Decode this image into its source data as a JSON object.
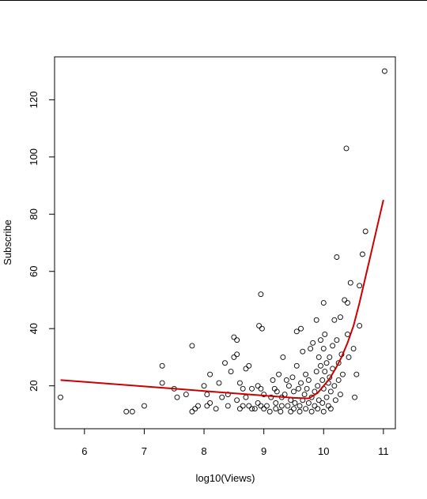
{
  "chart_data": {
    "type": "scatter",
    "xlabel": "log10(Views)",
    "ylabel": "Subscribe",
    "xlim": [
      5.5,
      11.2
    ],
    "ylim": [
      5,
      135
    ],
    "xticks": [
      6,
      7,
      8,
      9,
      10,
      11
    ],
    "yticks": [
      20,
      40,
      60,
      80,
      100,
      120
    ],
    "grid": false,
    "legend": "none",
    "point_color": "#000000",
    "fit_color": "#cc0000",
    "points": [
      [
        5.6,
        16
      ],
      [
        6.7,
        11
      ],
      [
        6.8,
        11
      ],
      [
        7.0,
        13
      ],
      [
        7.3,
        27
      ],
      [
        7.3,
        21
      ],
      [
        7.5,
        19
      ],
      [
        7.55,
        16
      ],
      [
        7.7,
        17
      ],
      [
        7.8,
        34
      ],
      [
        7.8,
        11
      ],
      [
        7.9,
        13
      ],
      [
        7.85,
        12
      ],
      [
        8.0,
        20
      ],
      [
        8.05,
        17
      ],
      [
        8.05,
        13
      ],
      [
        8.1,
        24
      ],
      [
        8.1,
        14
      ],
      [
        8.2,
        12
      ],
      [
        8.25,
        21
      ],
      [
        8.3,
        16
      ],
      [
        8.35,
        28
      ],
      [
        8.4,
        17
      ],
      [
        8.4,
        13
      ],
      [
        8.45,
        25
      ],
      [
        8.5,
        37
      ],
      [
        8.55,
        36
      ],
      [
        8.5,
        30
      ],
      [
        8.55,
        31
      ],
      [
        8.55,
        15
      ],
      [
        8.6,
        21
      ],
      [
        8.6,
        12
      ],
      [
        8.65,
        19
      ],
      [
        8.65,
        13
      ],
      [
        8.7,
        26
      ],
      [
        8.7,
        16
      ],
      [
        8.75,
        27
      ],
      [
        8.75,
        13
      ],
      [
        8.8,
        19
      ],
      [
        8.8,
        12
      ],
      [
        8.85,
        12
      ],
      [
        8.9,
        20
      ],
      [
        8.9,
        14
      ],
      [
        8.92,
        41
      ],
      [
        8.95,
        52
      ],
      [
        8.97,
        40
      ],
      [
        8.95,
        19
      ],
      [
        8.95,
        13
      ],
      [
        9.0,
        17
      ],
      [
        9.0,
        12
      ],
      [
        9.05,
        13
      ],
      [
        9.1,
        11
      ],
      [
        9.12,
        16
      ],
      [
        9.15,
        22
      ],
      [
        9.18,
        19
      ],
      [
        9.2,
        12
      ],
      [
        9.2,
        14
      ],
      [
        9.22,
        18
      ],
      [
        9.25,
        24
      ],
      [
        9.28,
        11
      ],
      [
        9.3,
        16
      ],
      [
        9.3,
        13
      ],
      [
        9.32,
        30
      ],
      [
        9.35,
        17
      ],
      [
        9.38,
        22
      ],
      [
        9.4,
        13
      ],
      [
        9.42,
        20
      ],
      [
        9.45,
        11
      ],
      [
        9.45,
        15
      ],
      [
        9.48,
        23
      ],
      [
        9.5,
        18
      ],
      [
        9.5,
        12
      ],
      [
        9.52,
        14
      ],
      [
        9.55,
        39
      ],
      [
        9.55,
        27
      ],
      [
        9.58,
        19
      ],
      [
        9.6,
        11
      ],
      [
        9.6,
        13
      ],
      [
        9.62,
        21
      ],
      [
        9.62,
        40
      ],
      [
        9.65,
        32
      ],
      [
        9.65,
        15
      ],
      [
        9.68,
        17
      ],
      [
        9.7,
        24
      ],
      [
        9.7,
        12
      ],
      [
        9.72,
        19
      ],
      [
        9.75,
        14
      ],
      [
        9.75,
        22
      ],
      [
        9.78,
        33
      ],
      [
        9.8,
        11
      ],
      [
        9.8,
        16
      ],
      [
        9.82,
        35
      ],
      [
        9.85,
        18
      ],
      [
        9.85,
        13
      ],
      [
        9.88,
        43
      ],
      [
        9.88,
        25
      ],
      [
        9.9,
        20
      ],
      [
        9.9,
        12
      ],
      [
        9.92,
        30
      ],
      [
        9.92,
        15
      ],
      [
        9.95,
        27
      ],
      [
        9.95,
        36
      ],
      [
        9.98,
        22
      ],
      [
        9.98,
        14
      ],
      [
        10.0,
        49
      ],
      [
        10.0,
        33
      ],
      [
        10.0,
        19
      ],
      [
        10.0,
        11
      ],
      [
        10.02,
        38
      ],
      [
        10.02,
        25
      ],
      [
        10.05,
        28
      ],
      [
        10.05,
        16
      ],
      [
        10.08,
        21
      ],
      [
        10.08,
        13
      ],
      [
        10.1,
        30
      ],
      [
        10.1,
        23
      ],
      [
        10.12,
        18
      ],
      [
        10.12,
        12
      ],
      [
        10.15,
        34
      ],
      [
        10.15,
        26
      ],
      [
        10.18,
        43
      ],
      [
        10.18,
        20
      ],
      [
        10.2,
        15
      ],
      [
        10.22,
        65
      ],
      [
        10.22,
        36
      ],
      [
        10.25,
        28
      ],
      [
        10.25,
        22
      ],
      [
        10.28,
        44
      ],
      [
        10.28,
        17
      ],
      [
        10.3,
        31
      ],
      [
        10.32,
        24
      ],
      [
        10.35,
        50
      ],
      [
        10.38,
        103
      ],
      [
        10.4,
        49
      ],
      [
        10.4,
        38
      ],
      [
        10.42,
        30
      ],
      [
        10.45,
        56
      ],
      [
        10.5,
        33
      ],
      [
        10.52,
        16
      ],
      [
        10.55,
        24
      ],
      [
        10.6,
        55
      ],
      [
        10.6,
        41
      ],
      [
        10.65,
        66
      ],
      [
        10.7,
        74
      ],
      [
        11.02,
        130
      ]
    ],
    "fit_line": [
      [
        5.6,
        22
      ],
      [
        6.0,
        21.4
      ],
      [
        6.5,
        20.6
      ],
      [
        7.0,
        19.8
      ],
      [
        7.5,
        19
      ],
      [
        8.0,
        18.2
      ],
      [
        8.5,
        17.4
      ],
      [
        9.0,
        16.6
      ],
      [
        9.5,
        15.8
      ],
      [
        9.75,
        15.6
      ],
      [
        9.9,
        17.5
      ],
      [
        10.0,
        20
      ],
      [
        10.1,
        22.5
      ],
      [
        10.2,
        26
      ],
      [
        10.3,
        30
      ],
      [
        10.4,
        35
      ],
      [
        10.5,
        41
      ],
      [
        10.6,
        49
      ],
      [
        10.7,
        58
      ],
      [
        10.8,
        67
      ],
      [
        10.9,
        76
      ],
      [
        11.0,
        85
      ]
    ]
  }
}
